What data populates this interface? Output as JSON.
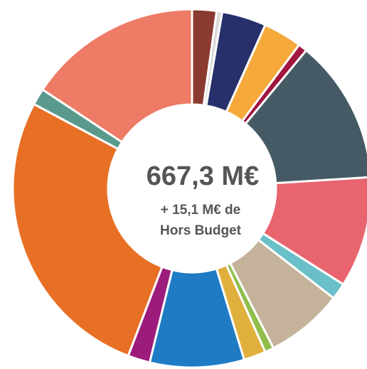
{
  "chart_data": {
    "type": "donut",
    "values": [
      2.2,
      0.5,
      4,
      3.5,
      0.8,
      13,
      10,
      1.5,
      7,
      0.8,
      2,
      8.5,
      2,
      27,
      1.5,
      15.7
    ],
    "colors": [
      "#8b3a2f",
      "#d9d9d9",
      "#27306b",
      "#f4a93a",
      "#a0163f",
      "#455a64",
      "#e8646f",
      "#6bbfc9",
      "#c4b39a",
      "#8fbf4a",
      "#e0b03c",
      "#1f7bc4",
      "#9c1c7c",
      "#e87025",
      "#5a9a8c",
      "#ee7b66"
    ],
    "center_title": "667,3 M€",
    "center_subtitle": [
      "+ 15,1 M€ de",
      "Hors Budget"
    ]
  }
}
